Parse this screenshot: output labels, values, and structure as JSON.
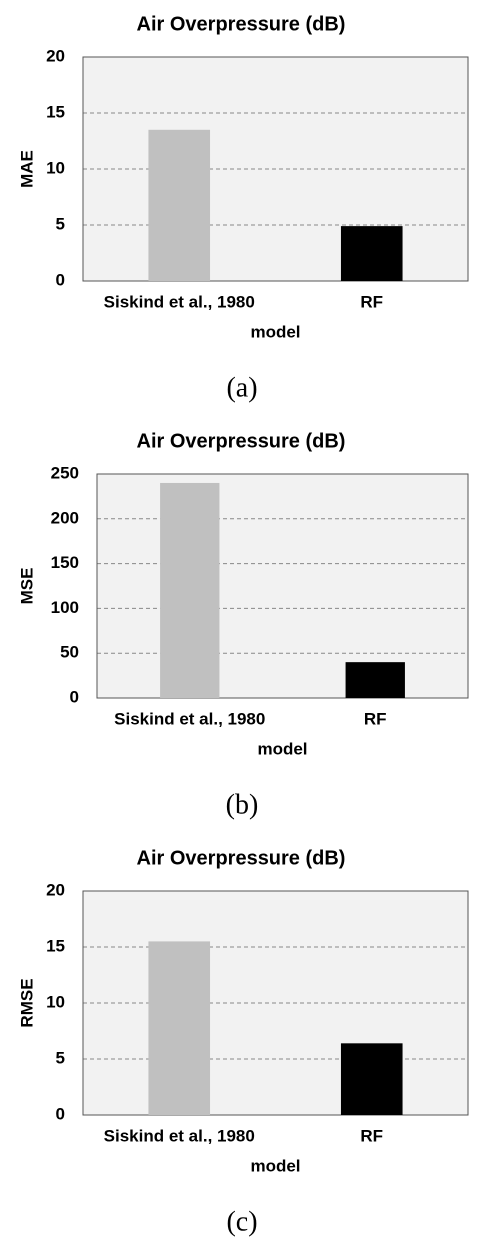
{
  "chart_data": [
    {
      "type": "bar",
      "title": "Air Overpressure (dB)",
      "ylabel": "MAE",
      "xlabel": "model",
      "caption": "(a)",
      "categories": [
        "Siskind et al., 1980",
        "RF"
      ],
      "values": [
        13.5,
        4.9
      ],
      "colors": [
        "#c0c0c0",
        "#000000"
      ],
      "ylim": [
        0,
        20
      ],
      "yticks": [
        0,
        5,
        10,
        15,
        20
      ],
      "grid": true
    },
    {
      "type": "bar",
      "title": "Air Overpressure (dB)",
      "ylabel": "MSE",
      "xlabel": "model",
      "caption": "(b)",
      "categories": [
        "Siskind et al., 1980",
        "RF"
      ],
      "values": [
        240,
        40
      ],
      "colors": [
        "#c0c0c0",
        "#000000"
      ],
      "ylim": [
        0,
        250
      ],
      "yticks": [
        0,
        50,
        100,
        150,
        200,
        250
      ],
      "grid": true
    },
    {
      "type": "bar",
      "title": "Air Overpressure (dB)",
      "ylabel": "RMSE",
      "xlabel": "model",
      "caption": "(c)",
      "categories": [
        "Siskind et al., 1980",
        "RF"
      ],
      "values": [
        15.5,
        6.4
      ],
      "colors": [
        "#c0c0c0",
        "#000000"
      ],
      "ylim": [
        0,
        20
      ],
      "yticks": [
        0,
        5,
        10,
        15,
        20
      ],
      "grid": true
    }
  ]
}
